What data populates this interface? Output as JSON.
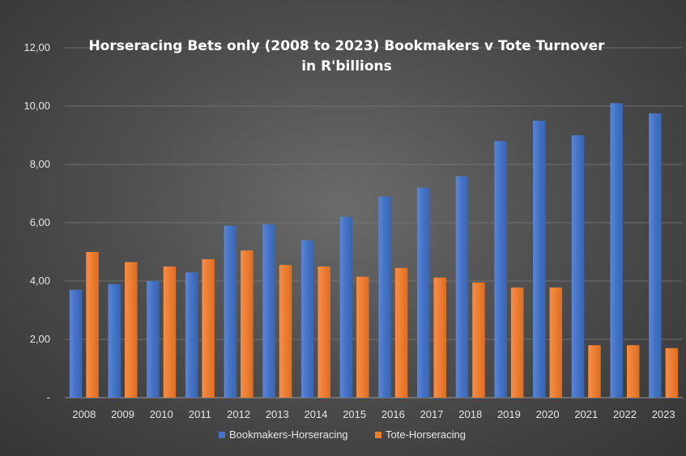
{
  "chart_data": {
    "type": "bar",
    "title": "Horseracing Bets only (2008 to 2023) Bookmakers v Tote Turnover",
    "subtitle": "in R'billions",
    "categories": [
      "2008",
      "2009",
      "2010",
      "2011",
      "2012",
      "2013",
      "2014",
      "2015",
      "2016",
      "2017",
      "2018",
      "2019",
      "2020",
      "2021",
      "2022",
      "2023"
    ],
    "series": [
      {
        "name": "Bookmakers-Horseracing",
        "color": "#4472c4",
        "values": [
          3.7,
          3.9,
          4.0,
          4.3,
          5.9,
          5.95,
          5.4,
          6.2,
          6.9,
          7.2,
          7.6,
          8.8,
          9.5,
          9.0,
          10.1,
          9.75
        ]
      },
      {
        "name": "Tote-Horseracing",
        "color": "#ed7d31",
        "values": [
          5.0,
          4.65,
          4.5,
          4.75,
          5.05,
          4.55,
          4.5,
          4.15,
          4.45,
          4.12,
          3.95,
          3.78,
          3.78,
          1.8,
          1.8,
          1.7
        ]
      }
    ],
    "ylim": [
      0,
      12
    ],
    "yticks": [
      {
        "value": 0,
        "label": "-"
      },
      {
        "value": 2,
        "label": "2,00"
      },
      {
        "value": 4,
        "label": "4,00"
      },
      {
        "value": 6,
        "label": "6,00"
      },
      {
        "value": 8,
        "label": "8,00"
      },
      {
        "value": 10,
        "label": "10,00"
      },
      {
        "value": 12,
        "label": "12,00"
      }
    ],
    "grid": true,
    "legend": "bottom"
  }
}
